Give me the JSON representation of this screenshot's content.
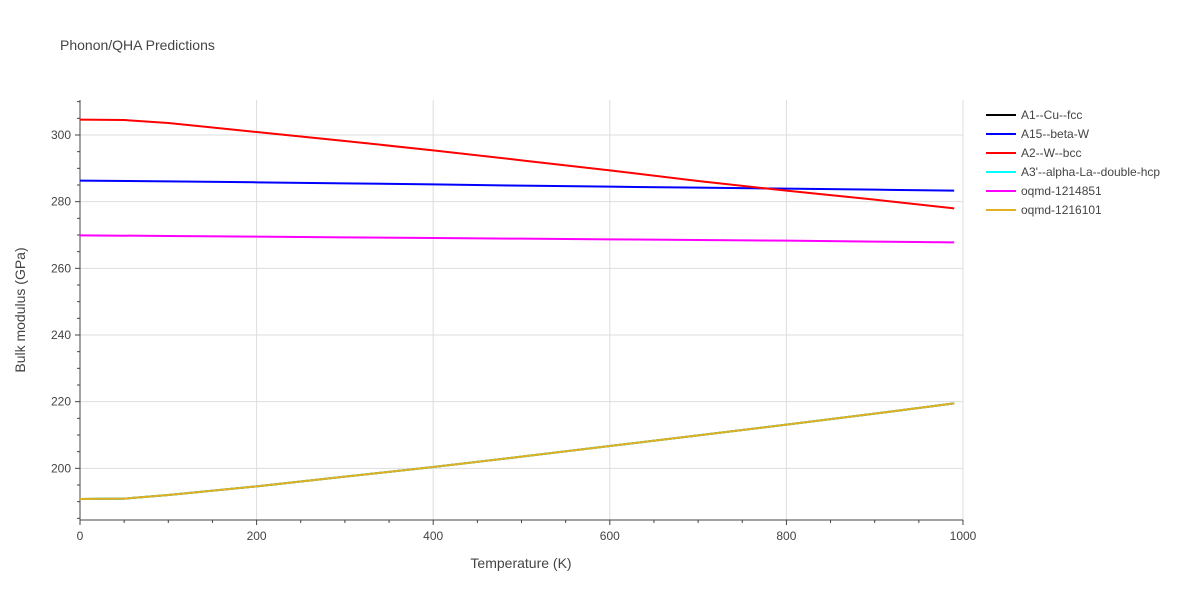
{
  "chart_data": {
    "type": "line",
    "title": "Phonon/QHA Predictions",
    "xlabel": "Temperature (K)",
    "ylabel": "Bulk modulus (GPa)",
    "xlim": [
      0,
      1000
    ],
    "ylim": [
      184.5,
      310.5
    ],
    "xticks": [
      0,
      200,
      400,
      600,
      800,
      1000
    ],
    "yticks": [
      200,
      220,
      240,
      260,
      280,
      300
    ],
    "grid": true,
    "legend_position": "right",
    "series": [
      {
        "name": "A1--Cu--fcc",
        "color": "#000000",
        "x": [
          0,
          50,
          100,
          200,
          300,
          400,
          500,
          600,
          700,
          800,
          900,
          990
        ],
        "y": [
          190.8,
          190.9,
          192.0,
          194.6,
          197.5,
          200.4,
          203.5,
          206.7,
          209.9,
          213.1,
          216.4,
          219.5
        ]
      },
      {
        "name": "A15--beta-W",
        "color": "#0000ff",
        "x": [
          0,
          100,
          200,
          300,
          400,
          500,
          600,
          700,
          800,
          900,
          990
        ],
        "y": [
          286.3,
          286.1,
          285.8,
          285.5,
          285.2,
          284.8,
          284.5,
          284.2,
          283.9,
          283.6,
          283.3
        ]
      },
      {
        "name": "A2--W--bcc",
        "color": "#ff0000",
        "x": [
          0,
          50,
          100,
          200,
          300,
          400,
          500,
          600,
          700,
          800,
          900,
          990
        ],
        "y": [
          304.6,
          304.5,
          303.6,
          300.9,
          298.2,
          295.4,
          292.4,
          289.4,
          286.2,
          283.3,
          280.6,
          278.0
        ]
      },
      {
        "name": "A3'--alpha-La--double-hcp",
        "color": "#00ffff",
        "x": [
          0,
          50,
          100,
          200,
          300,
          400,
          500,
          600,
          700,
          800,
          900,
          990
        ],
        "y": [
          190.8,
          190.9,
          192.0,
          194.6,
          197.5,
          200.4,
          203.5,
          206.7,
          209.9,
          213.1,
          216.4,
          219.5
        ]
      },
      {
        "name": "oqmd-1214851",
        "color": "#ff00ff",
        "x": [
          0,
          100,
          200,
          300,
          400,
          500,
          600,
          700,
          800,
          900,
          990
        ],
        "y": [
          269.9,
          269.7,
          269.5,
          269.3,
          269.1,
          268.9,
          268.7,
          268.5,
          268.3,
          268.0,
          267.8
        ]
      },
      {
        "name": "oqmd-1216101",
        "color": "#e0b020",
        "x": [
          0,
          50,
          100,
          200,
          300,
          400,
          500,
          600,
          700,
          800,
          900,
          990
        ],
        "y": [
          190.8,
          190.9,
          192.0,
          194.6,
          197.5,
          200.4,
          203.5,
          206.7,
          209.9,
          213.1,
          216.4,
          219.5
        ]
      }
    ]
  }
}
